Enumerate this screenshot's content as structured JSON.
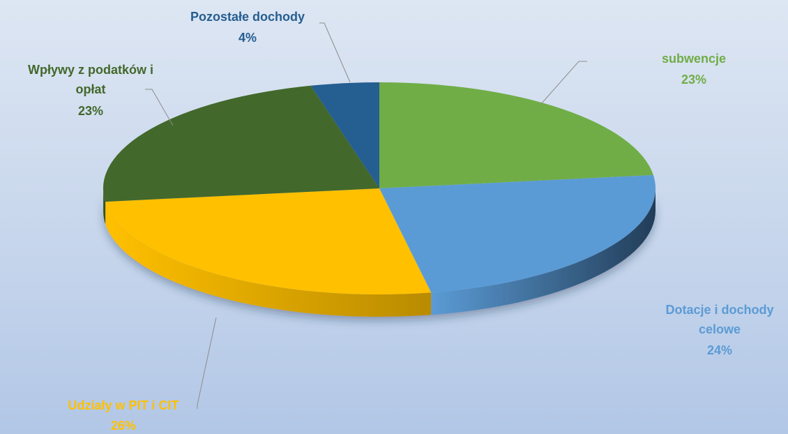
{
  "chart_data": {
    "type": "pie",
    "style": "3d",
    "title": "",
    "slices": [
      {
        "name": "subwencje",
        "value": 23,
        "label": "23%",
        "color": "#70ad47",
        "side_color": "#4e7a31",
        "label_color": "#70ad47"
      },
      {
        "name": "Dotacje i dochody celowe",
        "value": 24,
        "label": "24%",
        "color": "#5b9bd5",
        "side_color": "#223d58",
        "label_color": "#5b9bd5"
      },
      {
        "name": "Udziały w PIT i CIT",
        "value": 26,
        "label": "26%",
        "color": "#ffc000",
        "side_color": "#b98b00",
        "label_color": "#ffc000"
      },
      {
        "name": "Wpływy z podatków i opłat",
        "value": 23,
        "label": "23%",
        "color": "#43682b",
        "side_color": "#2c451c",
        "label_color": "#43682b"
      },
      {
        "name": "Pozostałe dochody",
        "value": 4,
        "label": "4%",
        "color": "#255e91",
        "side_color": "#173d5f",
        "label_color": "#255e91"
      }
    ]
  }
}
